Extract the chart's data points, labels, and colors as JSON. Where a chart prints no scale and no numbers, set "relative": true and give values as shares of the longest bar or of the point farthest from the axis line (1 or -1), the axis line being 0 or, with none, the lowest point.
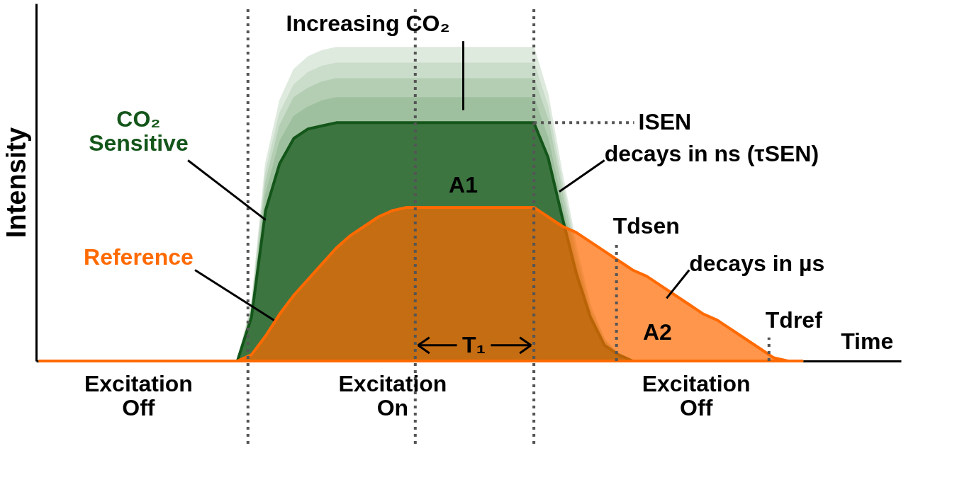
{
  "chart_data": {
    "type": "area",
    "relative": true,
    "xlabel": "Time",
    "ylabel": "Intensity",
    "categories": [
      null,
      null,
      null,
      null,
      null,
      null,
      null,
      null,
      null,
      null,
      null,
      null,
      null,
      null,
      null,
      null,
      null,
      null,
      null,
      null,
      null,
      null,
      null,
      null,
      null,
      null,
      null,
      null,
      null,
      null,
      null,
      null,
      null,
      null,
      null,
      null,
      null,
      null,
      null,
      null,
      null,
      null,
      null,
      null,
      null,
      null,
      null,
      null,
      null,
      null,
      null,
      null,
      null,
      null,
      null
    ],
    "series": [
      {
        "color": "#dfeadf",
        "values": [
          0,
          0,
          0,
          0,
          0,
          0,
          0,
          0,
          0,
          0,
          0,
          0,
          0,
          0,
          0,
          0.18,
          0.63,
          0.83,
          0.93,
          0.97,
          0.99,
          1,
          1,
          1,
          1,
          1,
          1,
          1,
          1,
          1,
          1,
          1,
          1,
          1,
          1,
          1,
          0.85,
          0.6,
          0.37,
          0.18,
          0.07,
          0.02,
          0,
          0,
          0,
          0,
          0,
          0,
          0,
          0,
          0,
          0,
          0,
          0,
          0
        ]
      },
      {
        "color": "#cadcca",
        "values": [
          0,
          0,
          0,
          0,
          0,
          0,
          0,
          0,
          0,
          0,
          0,
          0,
          0,
          0,
          0,
          0.17,
          0.6,
          0.79,
          0.88,
          0.92,
          0.94,
          0.95,
          0.95,
          0.95,
          0.95,
          0.95,
          0.95,
          0.95,
          0.95,
          0.95,
          0.95,
          0.95,
          0.95,
          0.95,
          0.95,
          0.95,
          0.81,
          0.57,
          0.35,
          0.17,
          0.07,
          0.02,
          0,
          0,
          0,
          0,
          0,
          0,
          0,
          0,
          0,
          0,
          0,
          0,
          0
        ]
      },
      {
        "color": "#b4ceb4",
        "values": [
          0,
          0,
          0,
          0,
          0,
          0,
          0,
          0,
          0,
          0,
          0,
          0,
          0,
          0,
          0,
          0.16,
          0.57,
          0.75,
          0.84,
          0.87,
          0.89,
          0.9,
          0.9,
          0.9,
          0.9,
          0.9,
          0.9,
          0.9,
          0.9,
          0.9,
          0.9,
          0.9,
          0.9,
          0.9,
          0.9,
          0.9,
          0.77,
          0.54,
          0.33,
          0.16,
          0.06,
          0.02,
          0,
          0,
          0,
          0,
          0,
          0,
          0,
          0,
          0,
          0,
          0,
          0,
          0
        ]
      },
      {
        "color": "#9fc09f",
        "values": [
          0,
          0,
          0,
          0,
          0,
          0,
          0,
          0,
          0,
          0,
          0,
          0,
          0,
          0,
          0,
          0.15,
          0.53,
          0.7,
          0.78,
          0.81,
          0.83,
          0.84,
          0.84,
          0.84,
          0.84,
          0.84,
          0.84,
          0.84,
          0.84,
          0.84,
          0.84,
          0.84,
          0.84,
          0.84,
          0.84,
          0.84,
          0.71,
          0.5,
          0.31,
          0.15,
          0.06,
          0.02,
          0,
          0,
          0,
          0,
          0,
          0,
          0,
          0,
          0,
          0,
          0,
          0,
          0
        ]
      },
      {
        "name": "CO₂ Sensitive",
        "color": "#14561a",
        "values": [
          0,
          0,
          0,
          0,
          0,
          0,
          0,
          0,
          0,
          0,
          0,
          0,
          0,
          0,
          0,
          0.14,
          0.48,
          0.63,
          0.71,
          0.74,
          0.75,
          0.76,
          0.76,
          0.76,
          0.76,
          0.76,
          0.76,
          0.76,
          0.76,
          0.76,
          0.76,
          0.76,
          0.76,
          0.76,
          0.76,
          0.76,
          0.65,
          0.46,
          0.28,
          0.14,
          0.05,
          0.02,
          0,
          0,
          0,
          0,
          0,
          0,
          0,
          0,
          0,
          0,
          0,
          0,
          0
        ]
      },
      {
        "name": "Reference",
        "color": "#ff6a00",
        "values": [
          0,
          0,
          0,
          0,
          0,
          0,
          0,
          0,
          0,
          0,
          0,
          0,
          0,
          0,
          0,
          0.02,
          0.08,
          0.15,
          0.21,
          0.26,
          0.31,
          0.36,
          0.4,
          0.43,
          0.46,
          0.48,
          0.49,
          0.49,
          0.49,
          0.49,
          0.49,
          0.49,
          0.49,
          0.49,
          0.49,
          0.49,
          0.46,
          0.43,
          0.41,
          0.38,
          0.35,
          0.32,
          0.29,
          0.27,
          0.24,
          0.21,
          0.18,
          0.15,
          0.13,
          0.1,
          0.07,
          0.04,
          0.01,
          0,
          0
        ]
      }
    ],
    "annotations": [
      "Increasing CO₂",
      "ISEN",
      "decays in ns (τSEN)",
      "A1",
      "A2",
      "decays in µs",
      "T₁",
      "Excitation Off",
      "Excitation On",
      "Excitation Off",
      "Tdsen",
      "Tdref"
    ]
  }
}
